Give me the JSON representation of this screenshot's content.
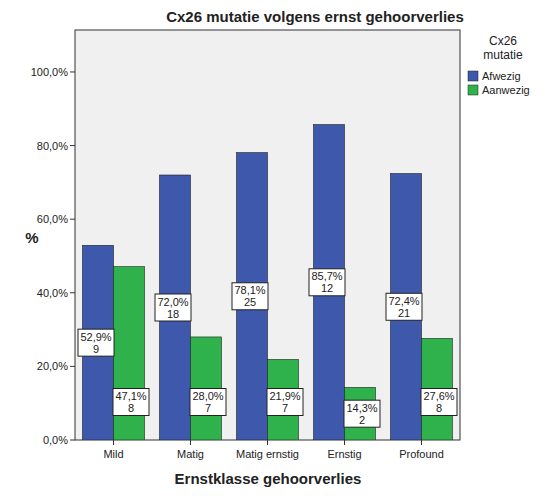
{
  "chart_data": {
    "type": "bar",
    "title": "Cx26 mutatie volgens ernst gehoorverlies",
    "x_label": "Ernstklasse gehoorverlies",
    "y_label": "%",
    "legend_title": "Cx26 mutatie",
    "legend": "right",
    "data_labels": true,
    "grid": false,
    "categories": [
      "Mild",
      "Matig",
      "Matig ernstig",
      "Ernstig",
      "Profound"
    ],
    "series": [
      {
        "name": "Afwezig",
        "color": "#3e58ac",
        "values": [
          52.9,
          72.0,
          78.1,
          85.7,
          72.4
        ],
        "value_labels": [
          "52,9%",
          "72,0%",
          "78,1%",
          "85,7%",
          "72,4%"
        ],
        "counts": [
          9,
          18,
          25,
          12,
          21
        ]
      },
      {
        "name": "Aanwezig",
        "color": "#2fb24b",
        "values": [
          47.1,
          28.0,
          21.9,
          14.3,
          27.6
        ],
        "value_labels": [
          "47,1%",
          "28,0%",
          "21,9%",
          "14,3%",
          "27,6%"
        ],
        "counts": [
          8,
          7,
          7,
          2,
          8
        ]
      }
    ],
    "ylim": [
      0,
      111.4
    ],
    "yticks": [
      {
        "value": 0,
        "label": "0,0%"
      },
      {
        "value": 20,
        "label": "20,0%"
      },
      {
        "value": 40,
        "label": "40,0%"
      },
      {
        "value": 60,
        "label": "60,0%"
      },
      {
        "value": 80,
        "label": "80,0%"
      },
      {
        "value": 100,
        "label": "100,0%"
      }
    ]
  }
}
